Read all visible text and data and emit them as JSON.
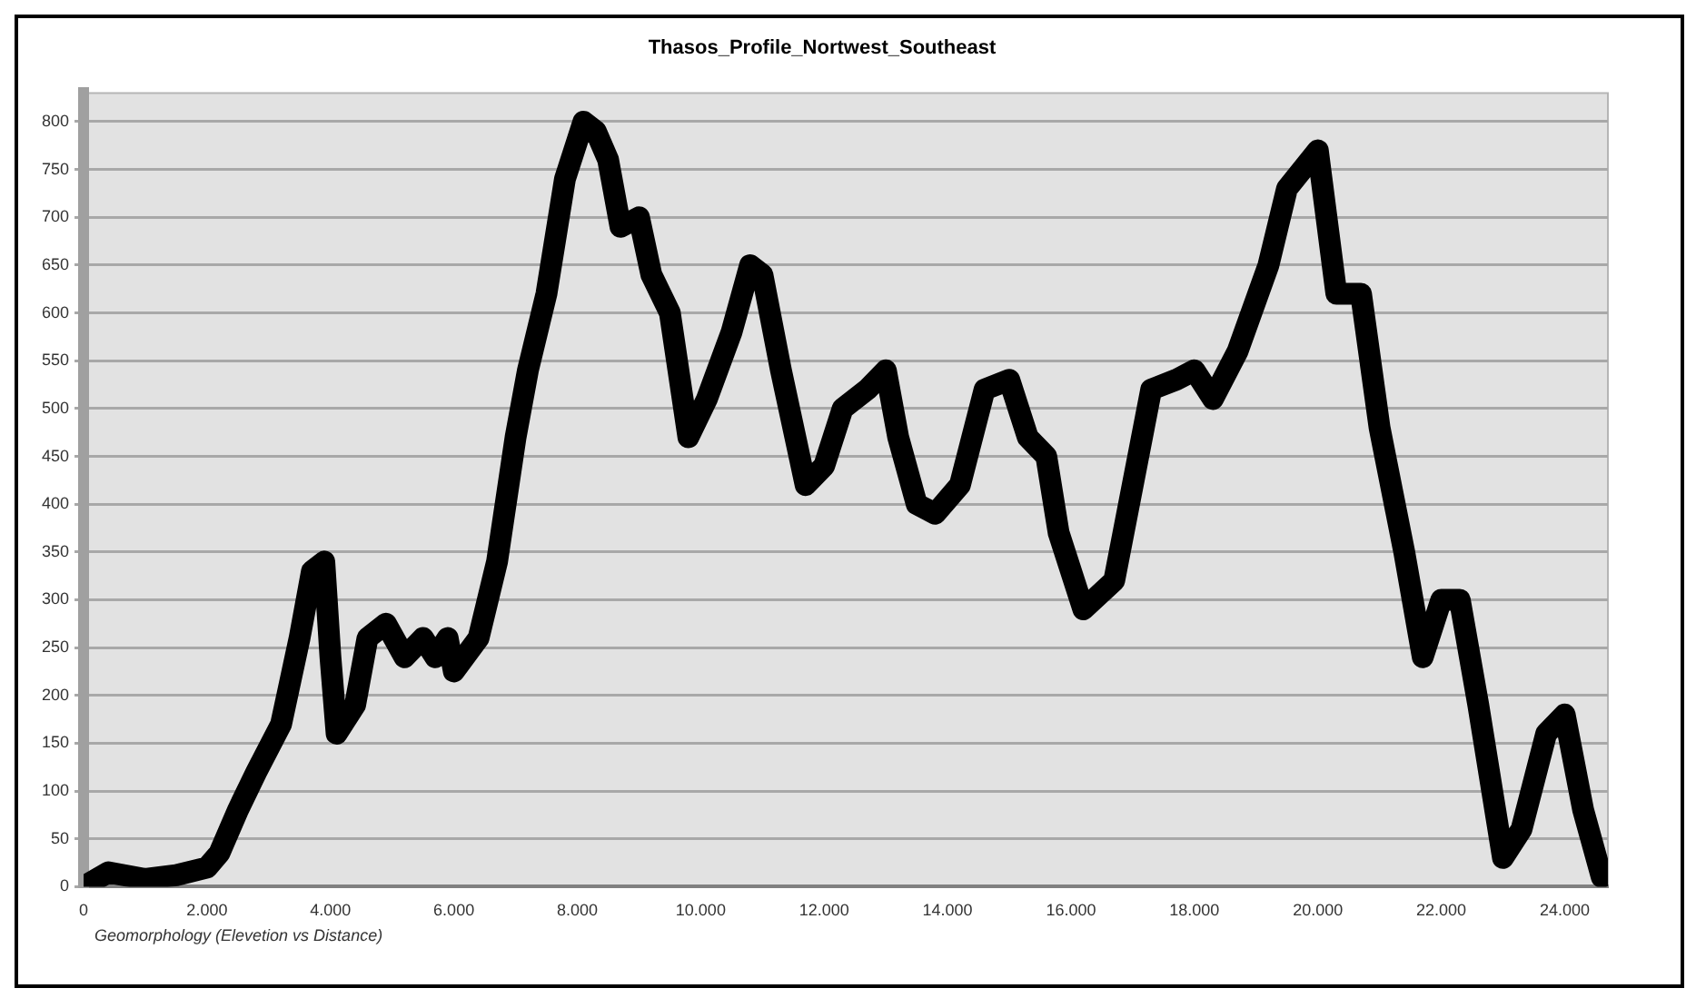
{
  "chart_data": {
    "type": "line",
    "title": "Thasos_Profile_Nortwest_Southeast",
    "annotations": [
      "Geomorphology (Elevetion vs Distance)"
    ],
    "x": [
      0,
      400,
      1000,
      1500,
      2000,
      2200,
      2500,
      2800,
      3200,
      3500,
      3700,
      3900,
      4000,
      4100,
      4400,
      4600,
      4900,
      5200,
      5500,
      5700,
      5900,
      6000,
      6400,
      6700,
      7000,
      7200,
      7500,
      7800,
      8100,
      8300,
      8500,
      8700,
      9000,
      9200,
      9500,
      9800,
      10100,
      10500,
      10800,
      11000,
      11300,
      11700,
      12000,
      12300,
      12700,
      13000,
      13200,
      13500,
      13800,
      14200,
      14600,
      15000,
      15300,
      15600,
      15800,
      16200,
      16700,
      17000,
      17300,
      17700,
      18000,
      18300,
      18700,
      19200,
      19500,
      20000,
      20300,
      20700,
      21000,
      21400,
      21700,
      22000,
      22300,
      22600,
      23000,
      23300,
      23700,
      24000,
      24300,
      24600
    ],
    "series": [
      {
        "color": "#000000",
        "values": [
          0,
          15,
          8,
          12,
          20,
          35,
          80,
          120,
          170,
          260,
          330,
          340,
          240,
          160,
          190,
          260,
          275,
          240,
          260,
          240,
          260,
          225,
          260,
          340,
          470,
          540,
          620,
          740,
          800,
          790,
          760,
          690,
          700,
          640,
          600,
          470,
          510,
          580,
          650,
          640,
          540,
          420,
          440,
          500,
          520,
          540,
          470,
          400,
          390,
          420,
          520,
          530,
          470,
          450,
          370,
          290,
          320,
          420,
          520,
          530,
          540,
          510,
          560,
          650,
          730,
          770,
          620,
          620,
          480,
          350,
          240,
          300,
          300,
          190,
          30,
          60,
          160,
          180,
          80,
          10
        ]
      }
    ],
    "xlim": [
      0,
      24700
    ],
    "xticks": [
      0,
      {
        "value": 2000,
        "label": "2.000"
      },
      {
        "value": 4000,
        "label": "4.000"
      },
      {
        "value": 6000,
        "label": "6.000"
      },
      {
        "value": 8000,
        "label": "8.000"
      },
      {
        "value": 10000,
        "label": "10.000"
      },
      {
        "value": 12000,
        "label": "12.000"
      },
      {
        "value": 14000,
        "label": "14.000"
      },
      {
        "value": 16000,
        "label": "16.000"
      },
      {
        "value": 18000,
        "label": "18.000"
      },
      {
        "value": 20000,
        "label": "20.000"
      },
      {
        "value": 22000,
        "label": "22.000"
      },
      {
        "value": 24000,
        "label": "24.000"
      }
    ],
    "ylim": [
      0,
      830
    ],
    "yticks": [
      0,
      50,
      100,
      150,
      200,
      250,
      300,
      350,
      400,
      450,
      500,
      550,
      600,
      650,
      700,
      750,
      800
    ],
    "grid": "y",
    "legend": false,
    "marker": "none",
    "line_style": "solid"
  }
}
